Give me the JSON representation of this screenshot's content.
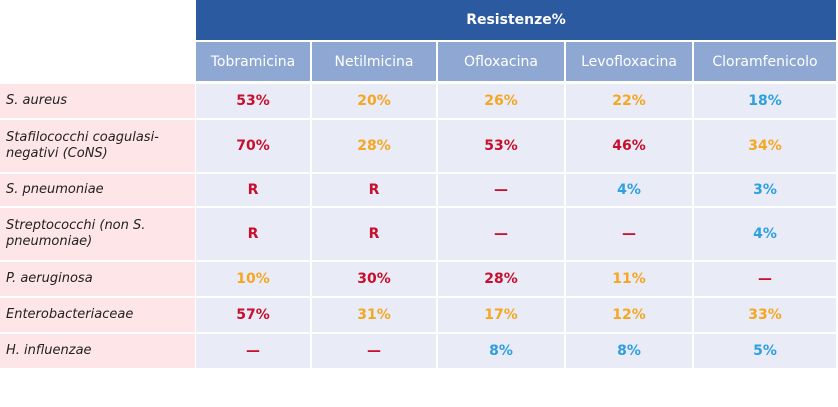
{
  "table": {
    "title": "Resistenze%",
    "columns": [
      "Tobramicina",
      "Netilmicina",
      "Ofloxacina",
      "Levofloxacina",
      "Cloramfenicolo"
    ],
    "rows": [
      {
        "label": "S. aureus",
        "values": [
          "53%",
          "20%",
          "26%",
          "22%",
          "18%"
        ],
        "colors": [
          "red",
          "orange",
          "orange",
          "orange",
          "blue"
        ]
      },
      {
        "label": "Stafilococchi coagulasi-negativi (CoNS)",
        "values": [
          "70%",
          "28%",
          "53%",
          "46%",
          "34%"
        ],
        "colors": [
          "red",
          "orange",
          "red",
          "red",
          "orange"
        ]
      },
      {
        "label": "S. pneumoniae",
        "values": [
          "R",
          "R",
          "—",
          "4%",
          "3%"
        ],
        "colors": [
          "red",
          "red",
          "red",
          "blue",
          "blue"
        ]
      },
      {
        "label": "Streptococchi (non S. pneumoniae)",
        "values": [
          "R",
          "R",
          "—",
          "—",
          "4%"
        ],
        "colors": [
          "red",
          "red",
          "red",
          "red",
          "blue"
        ]
      },
      {
        "label": "P. aeruginosa",
        "values": [
          "10%",
          "30%",
          "28%",
          "11%",
          "—"
        ],
        "colors": [
          "orange",
          "red",
          "red",
          "orange",
          "red"
        ]
      },
      {
        "label": "Enterobacteriaceae",
        "values": [
          "57%",
          "31%",
          "17%",
          "12%",
          "33%"
        ],
        "colors": [
          "red",
          "orange",
          "orange",
          "orange",
          "orange"
        ]
      },
      {
        "label": "H. influenzae",
        "values": [
          "—",
          "—",
          "8%",
          "8%",
          "5%"
        ],
        "colors": [
          "red",
          "red",
          "blue",
          "blue",
          "blue"
        ]
      }
    ]
  },
  "colors": {
    "red": "#c8102e",
    "orange": "#f5a623",
    "blue": "#2e9fe0",
    "header": "#2c5aa0",
    "subheader": "#8fa7d3"
  }
}
